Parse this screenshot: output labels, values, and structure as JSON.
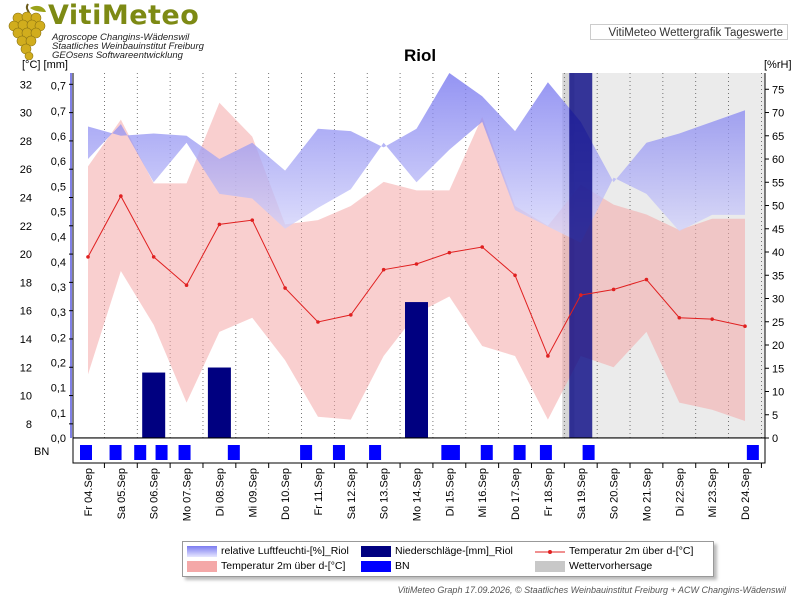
{
  "logo": {
    "title": "VitiMeteo",
    "line1": "Agroscope Changins-Wädenswil",
    "line2": "Staatliches Weinbauinstitut Freiburg",
    "line3": "GEOsens Softwareentwicklung"
  },
  "header": {
    "right_label": "VitiMeteo Wettergrafik Tageswerte"
  },
  "footer": {
    "text": "VitiMeteo Graph 17.09.2026, © Staatliches Weinbauinstitut Freiburg + ACW Changins-Wädenswil"
  },
  "legend": {
    "items": [
      {
        "label": "relative Luftfeuchti-[%]_Riol",
        "color": "#7b7bf0"
      },
      {
        "label": "Niederschläge-[mm]_Riol",
        "color": "#000080"
      },
      {
        "label": "Temperatur 2m über d-[°C]",
        "color": "#e02020"
      },
      {
        "label": "Temperatur 2m über d-[°C]",
        "color": "#f4a8a8"
      },
      {
        "label": "BN",
        "color": "#0000ff"
      },
      {
        "label": "Wettervorhersage",
        "color": "#c8c8c8"
      }
    ]
  },
  "chart_data": {
    "type": "line",
    "title": "Riol",
    "y_left_label": "[°C] [mm]",
    "y_right_label": "[%rH]",
    "x_labels": [
      "Fr 04.Sep",
      "Sa 05.Sep",
      "So 06.Sep",
      "Mo 07.Sep",
      "Di 08.Sep",
      "Mi 09.Sep",
      "Do 10.Sep",
      "Fr 11.Sep",
      "Sa 12.Sep",
      "So 13.Sep",
      "Mo 14.Sep",
      "Di 15.Sep",
      "Mi 16.Sep",
      "Do 17.Sep",
      "Fr 18.Sep",
      "Sa 19.Sep",
      "So 20.Sep",
      "Mo 21.Sep",
      "Di 22.Sep",
      "Mi 23.Sep",
      "Do 24.Sep"
    ],
    "temp_ticks": [
      8,
      10,
      12,
      14,
      16,
      18,
      20,
      22,
      24,
      26,
      28,
      30,
      32
    ],
    "precip_ticks": [
      "0,0",
      "0,1",
      "0,1",
      "0,2",
      "0,2",
      "0,3",
      "0,3",
      "0,4",
      "0,4",
      "0,5",
      "0,5",
      "0,6",
      "0,6",
      "0,7",
      "0,7"
    ],
    "rh_ticks": [
      0,
      5,
      10,
      15,
      20,
      25,
      30,
      35,
      40,
      45,
      50,
      55,
      60,
      65,
      70,
      75
    ],
    "temp_range": [
      7,
      32.8
    ],
    "rh_range": [
      0,
      78.5
    ],
    "precip_range": [
      0,
      0.725
    ],
    "forecast_start_day": 14.5,
    "series": [
      {
        "name": "Temperatur 2m über d-[°C]",
        "kind": "temp_mean",
        "values": [
          19.8,
          24.1,
          19.8,
          17.8,
          22.1,
          22.4,
          17.6,
          15.2,
          15.7,
          18.9,
          19.3,
          20.1,
          20.5,
          18.5,
          12.8,
          17.1,
          17.5,
          18.2,
          15.5,
          15.4,
          14.9
        ]
      },
      {
        "name": "Temperatur 2m über d-[°C]",
        "kind": "temp_max",
        "values": [
          26.2,
          29.5,
          25,
          25,
          30.7,
          28.3,
          22.1,
          22.4,
          23.4,
          25.1,
          24.5,
          24.5,
          29.7,
          23.4,
          22,
          24.9,
          23.5,
          22.8,
          21.7,
          22.5,
          22.5
        ]
      },
      {
        "name": "Temperatur 2m über d-[°C]",
        "kind": "temp_min",
        "values": [
          11.5,
          18.8,
          15,
          9.5,
          14.5,
          15.5,
          12.5,
          8.5,
          8.3,
          12.8,
          15.8,
          17,
          13.5,
          12.8,
          8.3,
          12.8,
          12,
          14.5,
          9.5,
          9,
          8.2
        ]
      },
      {
        "name": "relative Luftfeuchti-[%]_Riol",
        "kind": "rh_max",
        "values": [
          67,
          65,
          65.5,
          65,
          60,
          63.5,
          57.5,
          66.5,
          66,
          62.5,
          66.5,
          78.5,
          73.5,
          66,
          76.5,
          68,
          55,
          63.5,
          65.5,
          68,
          70.5
        ]
      },
      {
        "name": "relative Luftfeuchti-[%]_Riol",
        "kind": "rh_min",
        "values": [
          60,
          67.5,
          55,
          63.5,
          52.5,
          51.5,
          45,
          49.5,
          53.5,
          63.5,
          55,
          62,
          68,
          49,
          45.5,
          42,
          56,
          52.5,
          44.5,
          48,
          48
        ]
      },
      {
        "name": "Niederschläge-[mm]_Riol",
        "kind": "precip",
        "bars": [
          {
            "day": 2,
            "value": 0.13
          },
          {
            "day": 4,
            "value": 0.14
          },
          {
            "day": 10,
            "value": 0.27
          },
          {
            "day": 15,
            "value": 0.725
          }
        ]
      }
    ],
    "bn_marks": [
      0,
      0.9,
      1.65,
      2.3,
      3,
      4.5,
      6.7,
      7.7,
      8.8,
      11,
      11.2,
      12.2,
      13.2,
      14,
      15.3,
      20.3
    ]
  }
}
